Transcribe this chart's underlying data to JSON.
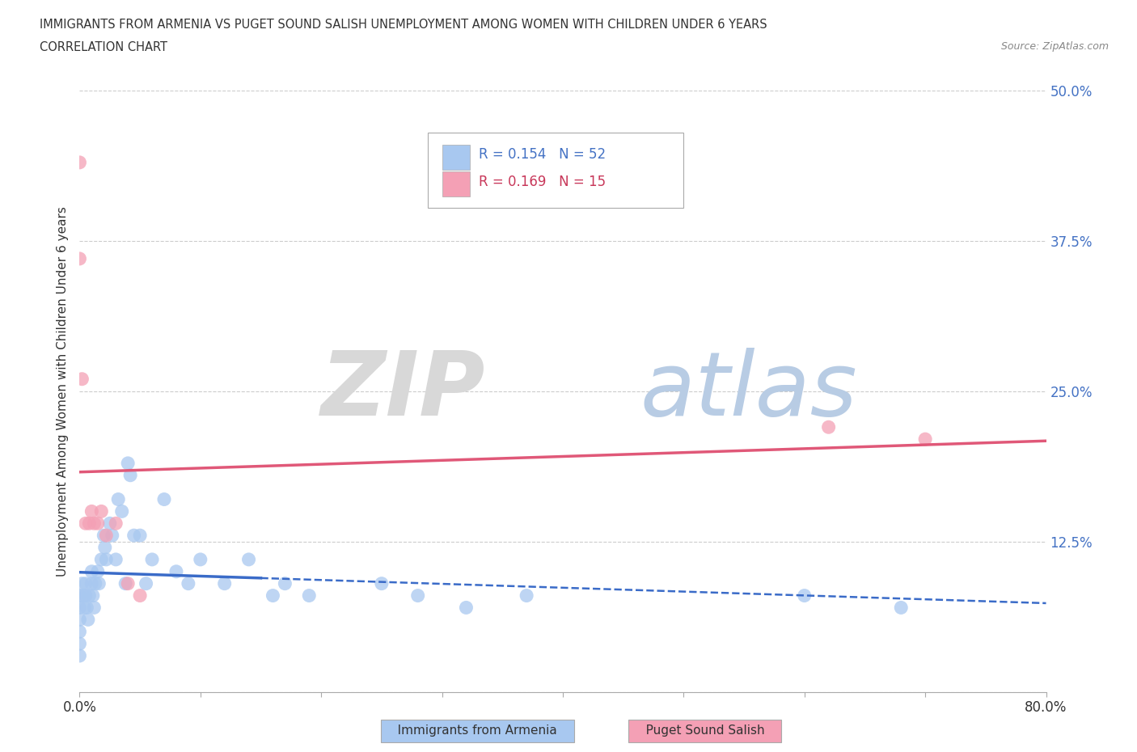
{
  "title_line1": "IMMIGRANTS FROM ARMENIA VS PUGET SOUND SALISH UNEMPLOYMENT AMONG WOMEN WITH CHILDREN UNDER 6 YEARS",
  "title_line2": "CORRELATION CHART",
  "source": "Source: ZipAtlas.com",
  "ylabel": "Unemployment Among Women with Children Under 6 years",
  "xlim": [
    0.0,
    0.8
  ],
  "ylim": [
    0.0,
    0.5
  ],
  "yticks": [
    0.0,
    0.125,
    0.25,
    0.375,
    0.5
  ],
  "ytick_labels": [
    "",
    "12.5%",
    "25.0%",
    "37.5%",
    "50.0%"
  ],
  "xtick_positions": [
    0.0,
    0.1,
    0.2,
    0.3,
    0.4,
    0.5,
    0.6,
    0.7,
    0.8
  ],
  "armenia_r": 0.154,
  "armenia_n": 52,
  "salish_r": 0.169,
  "salish_n": 15,
  "armenia_color": "#a8c8f0",
  "salish_color": "#f4a0b5",
  "armenia_trend_color": "#3a6bc8",
  "salish_trend_color": "#e05878",
  "background_color": "#ffffff",
  "armenia_x": [
    0.0,
    0.0,
    0.0,
    0.0,
    0.0,
    0.0,
    0.002,
    0.003,
    0.004,
    0.005,
    0.005,
    0.006,
    0.007,
    0.008,
    0.01,
    0.01,
    0.011,
    0.012,
    0.013,
    0.015,
    0.016,
    0.018,
    0.02,
    0.021,
    0.022,
    0.025,
    0.027,
    0.03,
    0.032,
    0.035,
    0.038,
    0.04,
    0.042,
    0.045,
    0.05,
    0.055,
    0.06,
    0.07,
    0.08,
    0.09,
    0.1,
    0.12,
    0.14,
    0.16,
    0.17,
    0.19,
    0.25,
    0.28,
    0.32,
    0.37,
    0.6,
    0.68
  ],
  "armenia_y": [
    0.08,
    0.07,
    0.06,
    0.05,
    0.04,
    0.03,
    0.09,
    0.08,
    0.07,
    0.09,
    0.08,
    0.07,
    0.06,
    0.08,
    0.1,
    0.09,
    0.08,
    0.07,
    0.09,
    0.1,
    0.09,
    0.11,
    0.13,
    0.12,
    0.11,
    0.14,
    0.13,
    0.11,
    0.16,
    0.15,
    0.09,
    0.19,
    0.18,
    0.13,
    0.13,
    0.09,
    0.11,
    0.16,
    0.1,
    0.09,
    0.11,
    0.09,
    0.11,
    0.08,
    0.09,
    0.08,
    0.09,
    0.08,
    0.07,
    0.08,
    0.08,
    0.07
  ],
  "salish_x": [
    0.0,
    0.0,
    0.002,
    0.005,
    0.008,
    0.01,
    0.012,
    0.015,
    0.018,
    0.022,
    0.03,
    0.04,
    0.05,
    0.62,
    0.7
  ],
  "salish_y": [
    0.44,
    0.36,
    0.26,
    0.14,
    0.14,
    0.15,
    0.14,
    0.14,
    0.15,
    0.13,
    0.14,
    0.09,
    0.08,
    0.22,
    0.21
  ],
  "armenia_trend_x_end": 0.15,
  "watermark_zip_color": "#d8d8d8",
  "watermark_atlas_color": "#b8cce4"
}
